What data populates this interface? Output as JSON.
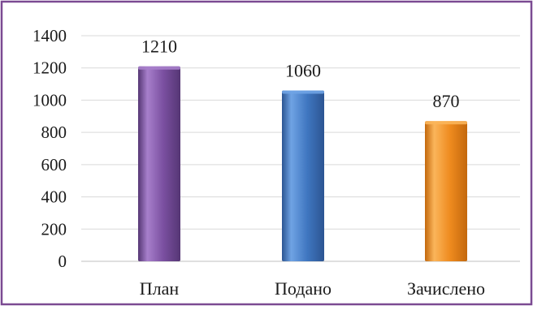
{
  "chart_data": {
    "type": "bar",
    "categories": [
      "План",
      "Подано",
      "Зачислено"
    ],
    "values": [
      1210,
      1060,
      870
    ],
    "data_labels": [
      "1210",
      "1060",
      "870"
    ],
    "ylim": [
      0,
      1400
    ],
    "yticks": [
      0,
      200,
      400,
      600,
      800,
      1000,
      1200,
      1400
    ],
    "ytick_labels": [
      "0",
      "200",
      "400",
      "600",
      "800",
      "1000",
      "1200",
      "1400"
    ],
    "grid": true,
    "legend": "none",
    "title": "",
    "xlabel": "",
    "ylabel": "",
    "colors": {
      "bars": [
        "#7a4fa0",
        "#3f76c0",
        "#ee8a1e"
      ],
      "bars_light": [
        "#a77fcb",
        "#6fa3e4",
        "#fbb55a"
      ],
      "bars_dark": [
        "#553674",
        "#2c5592",
        "#c3680d"
      ],
      "frame": "#7b4a92",
      "grid": "#d9d9d9",
      "axis": "#bfbfbf"
    }
  }
}
